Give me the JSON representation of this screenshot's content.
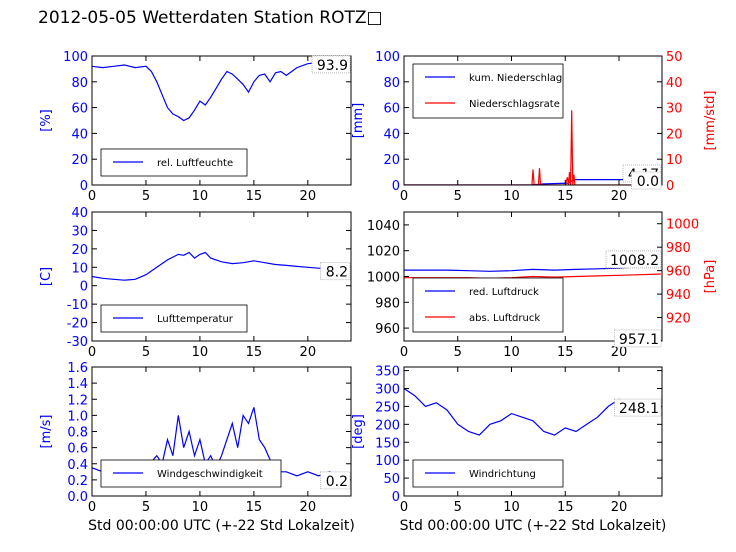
{
  "title": "2012-05-05 Wetterdaten Station ROTZ□",
  "xlabel": "Std 00:00:00 UTC (+-22 Std Lokalzeit)",
  "colors": {
    "blue": "#0000ff",
    "red": "#ff0000",
    "light_blue": "#8080ff"
  },
  "chart_data": [
    {
      "type": "line",
      "xlim": [
        0,
        24
      ],
      "ylim": [
        0,
        100
      ],
      "yticks": [
        0,
        20,
        40,
        60,
        80,
        100
      ],
      "xticks": [
        0,
        5,
        10,
        15,
        20
      ],
      "ylabel": "[%]",
      "last_value_label": "93.9",
      "legend": {
        "placement": "lower-left",
        "entries": [
          "rel. Luftfeuchte"
        ]
      },
      "series": [
        {
          "name": "rel. Luftfeuchte",
          "color": "#0000ff",
          "x": [
            0,
            1,
            2,
            3,
            4,
            5,
            5.5,
            6,
            6.5,
            7,
            7.5,
            8,
            8.5,
            9,
            9.5,
            10,
            10.5,
            11,
            11.5,
            12,
            12.5,
            13,
            13.5,
            14,
            14.5,
            15,
            15.5,
            16,
            16.5,
            17,
            17.5,
            18,
            19,
            20,
            21,
            22,
            23,
            23.9
          ],
          "y": [
            92,
            91,
            92,
            93,
            91,
            92,
            88,
            80,
            70,
            60,
            55,
            53,
            50,
            52,
            58,
            65,
            62,
            68,
            75,
            82,
            88,
            86,
            82,
            78,
            72,
            80,
            85,
            86,
            80,
            87,
            88,
            85,
            91,
            94,
            95,
            94,
            94,
            93.9
          ]
        }
      ]
    },
    {
      "type": "line",
      "xlim": [
        0,
        24
      ],
      "ylim": [
        0,
        100
      ],
      "y2lim": [
        0,
        50
      ],
      "yticks": [
        0,
        20,
        40,
        60,
        80,
        100
      ],
      "y2ticks": [
        0,
        10,
        20,
        30,
        40,
        50
      ],
      "xticks": [
        0,
        5,
        10,
        15,
        20
      ],
      "ylabel": "[mm]",
      "y2label": "[mm/std]",
      "value_labels": [
        "4.17",
        "0.0"
      ],
      "legend": {
        "placement": "upper-left",
        "entries": [
          "kum. Niederschlag",
          "Niederschlagsrate"
        ]
      },
      "series": [
        {
          "name": "kum. Niederschlag",
          "color": "#0000ff",
          "axis": "left",
          "x": [
            0,
            11.9,
            12.0,
            12.6,
            12.8,
            15.3,
            15.5,
            15.7,
            15.9,
            23.9
          ],
          "y": [
            0,
            0,
            0.3,
            0.5,
            0.8,
            1.5,
            2.5,
            3.8,
            4.17,
            4.17
          ]
        },
        {
          "name": "Niederschlagsrate",
          "color": "#ff0000",
          "axis": "right",
          "x": [
            0,
            11.9,
            12.0,
            12.1,
            12.2,
            12.5,
            12.6,
            12.7,
            12.8,
            15.0,
            15.2,
            15.3,
            15.4,
            15.5,
            15.6,
            15.7,
            15.8,
            15.9,
            16.0,
            23.9
          ],
          "y": [
            0,
            0,
            6,
            0,
            0,
            0,
            6.5,
            0,
            0,
            0,
            3,
            0,
            5,
            0,
            29,
            0,
            4,
            0,
            0,
            0
          ]
        }
      ]
    },
    {
      "type": "line",
      "xlim": [
        0,
        24
      ],
      "ylim": [
        -30,
        40
      ],
      "yticks": [
        -30,
        -20,
        -10,
        0,
        10,
        20,
        30,
        40
      ],
      "xticks": [
        0,
        5,
        10,
        15,
        20
      ],
      "ylabel": "[C]",
      "last_value_label": "8.2",
      "legend": {
        "placement": "lower-left",
        "entries": [
          "Lufttemperatur"
        ]
      },
      "series": [
        {
          "name": "Lufttemperatur",
          "color": "#0000ff",
          "x": [
            0,
            1,
            2,
            3,
            4,
            5,
            6,
            7,
            7.5,
            8,
            8.5,
            9,
            9.5,
            10,
            10.5,
            11,
            12,
            13,
            14,
            15,
            16,
            17,
            18,
            19,
            20,
            21,
            22,
            23,
            23.9
          ],
          "y": [
            5,
            4,
            3.5,
            3,
            3.5,
            6,
            10,
            14,
            15.5,
            17,
            16.5,
            18,
            15,
            17,
            18,
            15,
            13,
            12,
            12.5,
            13.5,
            12.5,
            11.5,
            11,
            10.5,
            10,
            9.5,
            9,
            8.5,
            8.2
          ]
        }
      ]
    },
    {
      "type": "line",
      "xlim": [
        0,
        24
      ],
      "ylim": [
        950,
        1050
      ],
      "y2lim": [
        900,
        1010
      ],
      "yticks": [
        960,
        980,
        1000,
        1020,
        1040
      ],
      "y2ticks": [
        920,
        940,
        960,
        980,
        1000
      ],
      "xticks": [
        0,
        5,
        10,
        15,
        20
      ],
      "y2label": "[hPa]",
      "value_labels": [
        "1008.2",
        "957.1"
      ],
      "legend": {
        "placement": "lower-left",
        "entries": [
          "red. Luftdruck",
          "abs. Luftdruck"
        ]
      },
      "series": [
        {
          "name": "red. Luftdruck",
          "color": "#0000ff",
          "axis": "left",
          "x": [
            0,
            2,
            4,
            6,
            8,
            10,
            12,
            14,
            16,
            18,
            20,
            22,
            23.9
          ],
          "y": [
            1005,
            1005,
            1005,
            1004.5,
            1004,
            1004.5,
            1005.5,
            1005,
            1005.5,
            1006,
            1006.5,
            1007.5,
            1008.2
          ]
        },
        {
          "name": "abs. Luftdruck",
          "color": "#ff0000",
          "axis": "right",
          "x": [
            0,
            2,
            4,
            6,
            8,
            10,
            12,
            14,
            16,
            18,
            20,
            22,
            23.9
          ],
          "y": [
            954,
            954,
            954,
            954,
            953.5,
            954,
            955,
            954.5,
            955,
            955.5,
            956,
            956.5,
            957.1
          ]
        }
      ]
    },
    {
      "type": "line",
      "xlim": [
        0,
        24
      ],
      "ylim": [
        0,
        1.6
      ],
      "yticks": [
        0.0,
        0.2,
        0.4,
        0.6,
        0.8,
        1.0,
        1.2,
        1.4,
        1.6
      ],
      "xticks": [
        0,
        5,
        10,
        15,
        20
      ],
      "ylabel": "[m/s]",
      "xlabel": "Std 00:00:00 UTC (+-22 Std Lokalzeit)",
      "last_value_label": "0.2",
      "legend": {
        "placement": "lower-left",
        "entries": [
          "Windgeschwindigkeit"
        ]
      },
      "series": [
        {
          "name": "Windgeschwindigkeit",
          "color": "#0000ff",
          "x": [
            0,
            1,
            2,
            3,
            4,
            5,
            6,
            6.5,
            7,
            7.5,
            8,
            8.5,
            9,
            9.5,
            10,
            10.5,
            11,
            11.5,
            12,
            12.5,
            13,
            13.5,
            14,
            14.5,
            15,
            15.5,
            16,
            16.5,
            17,
            18,
            19,
            20,
            21,
            22,
            23,
            23.9
          ],
          "y": [
            0.35,
            0.3,
            0.3,
            0.35,
            0.4,
            0.35,
            0.5,
            0.4,
            0.7,
            0.5,
            1.0,
            0.6,
            0.8,
            0.5,
            0.7,
            0.4,
            0.5,
            0.35,
            0.5,
            0.7,
            0.9,
            0.6,
            1.0,
            0.9,
            1.1,
            0.7,
            0.6,
            0.45,
            0.3,
            0.3,
            0.25,
            0.3,
            0.25,
            0.3,
            0.25,
            0.2
          ]
        }
      ]
    },
    {
      "type": "line",
      "xlim": [
        0,
        24
      ],
      "ylim": [
        0,
        360
      ],
      "yticks": [
        0,
        50,
        100,
        150,
        200,
        250,
        300,
        350
      ],
      "xticks": [
        0,
        5,
        10,
        15,
        20
      ],
      "ylabel": "[deg]",
      "xlabel": "Std 00:00:00 UTC (+-22 Std Lokalzeit)",
      "last_value_label": "248.1",
      "legend": {
        "placement": "lower-left",
        "entries": [
          "Windrichtung"
        ]
      },
      "series": [
        {
          "name": "Windrichtung",
          "color": "#0000ff",
          "x": [
            0,
            1,
            2,
            3,
            4,
            5,
            6,
            7,
            8,
            9,
            10,
            11,
            12,
            13,
            14,
            15,
            16,
            17,
            18,
            19,
            20,
            21,
            22,
            23,
            23.9
          ],
          "y": [
            300,
            280,
            250,
            260,
            240,
            200,
            180,
            170,
            200,
            210,
            230,
            220,
            210,
            180,
            170,
            190,
            180,
            200,
            220,
            250,
            270,
            260,
            250,
            255,
            248.1
          ]
        }
      ]
    }
  ]
}
